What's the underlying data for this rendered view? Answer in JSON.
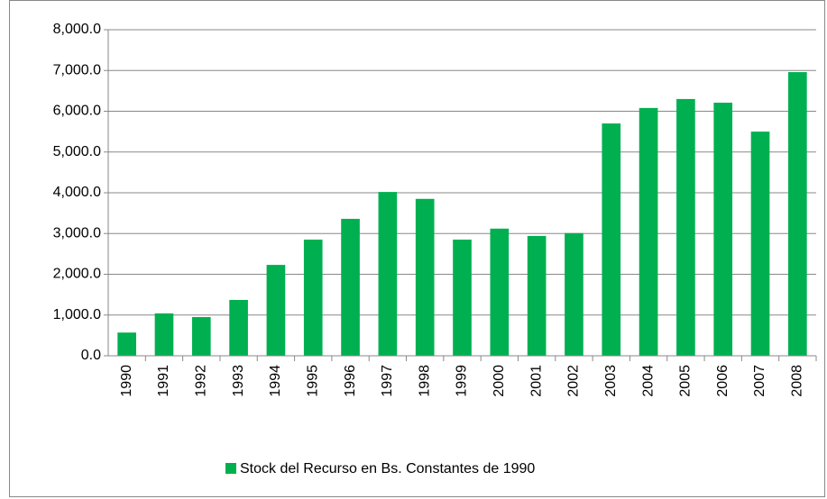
{
  "chart_data": {
    "type": "bar",
    "categories": [
      "1990",
      "1991",
      "1992",
      "1993",
      "1994",
      "1995",
      "1996",
      "1997",
      "1998",
      "1999",
      "2000",
      "2001",
      "2002",
      "2003",
      "2004",
      "2005",
      "2006",
      "2007",
      "2008"
    ],
    "series": [
      {
        "name": "Stock del Recurso en Bs. Constantes  de 1990",
        "color": "#00b050",
        "values": [
          570,
          1040,
          950,
          1370,
          2230,
          2850,
          3360,
          4020,
          3850,
          2850,
          3120,
          2940,
          3010,
          5700,
          6080,
          6300,
          6210,
          5500,
          6960
        ]
      }
    ],
    "ylim": [
      0,
      8000
    ],
    "yticks": [
      {
        "value": 0,
        "label": "0.0"
      },
      {
        "value": 1000,
        "label": "1,000.0"
      },
      {
        "value": 2000,
        "label": "2,000.0"
      },
      {
        "value": 3000,
        "label": "3,000.0"
      },
      {
        "value": 4000,
        "label": "4,000.0"
      },
      {
        "value": 5000,
        "label": "5,000.0"
      },
      {
        "value": 6000,
        "label": "6,000.0"
      },
      {
        "value": 7000,
        "label": "7,000.0"
      },
      {
        "value": 8000,
        "label": "8,000.0"
      }
    ],
    "grid": true,
    "legend": "bottom"
  }
}
